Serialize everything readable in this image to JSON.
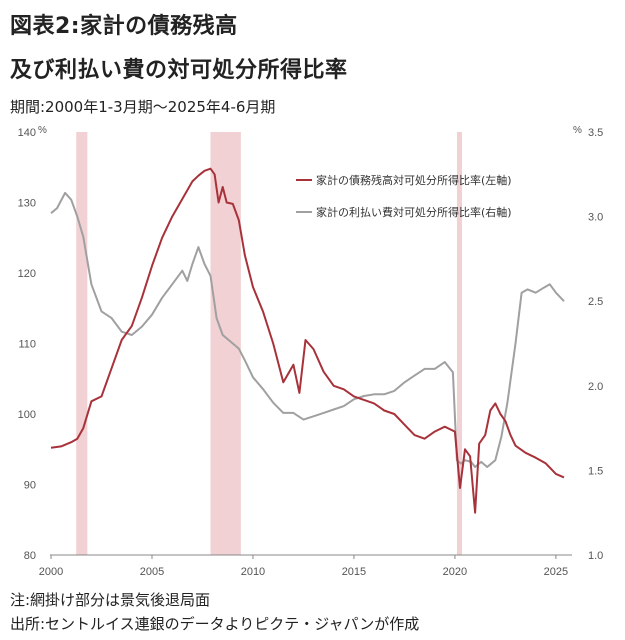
{
  "header": {
    "title_line1": "図表2:家計の債務残高",
    "title_line2": "及び利払い費の対可処分所得比率",
    "period": "期間:2000年1-3月期～2025年4-6月期"
  },
  "footer": {
    "note": "注:網掛け部分は景気後退局面",
    "source": "出所:セントルイス連銀のデータよりピクテ・ジャパンが作成"
  },
  "chart_data": {
    "type": "line",
    "left_axis": {
      "unit": "%",
      "ylim": [
        80,
        140
      ],
      "ticks": [
        "80",
        "90",
        "100",
        "110",
        "120",
        "130",
        "140"
      ]
    },
    "right_axis": {
      "unit": "%",
      "ylim": [
        1.0,
        3.5
      ],
      "ticks": [
        "1.0",
        "1.5",
        "2.0",
        "2.5",
        "3.0",
        "3.5"
      ]
    },
    "x_axis": {
      "xlim": [
        2000,
        2025.5
      ],
      "ticks": [
        "2000",
        "2005",
        "2010",
        "2015",
        "2020",
        "2025"
      ]
    },
    "grid": false,
    "legend_position": "top-right",
    "recessions": [
      [
        2001.25,
        2001.8
      ],
      [
        2007.9,
        2009.4
      ],
      [
        2020.1,
        2020.35
      ]
    ],
    "series": [
      {
        "name": "家計の債務残高対可処分所得比率(左軸)",
        "axis": "left",
        "color": "#a8323a",
        "x": [
          2000.0,
          2000.5,
          2001.0,
          2001.3,
          2001.6,
          2002.0,
          2002.5,
          2003.0,
          2003.5,
          2004.0,
          2004.5,
          2005.0,
          2005.5,
          2006.0,
          2006.5,
          2007.0,
          2007.3,
          2007.6,
          2007.9,
          2008.1,
          2008.3,
          2008.5,
          2008.7,
          2009.0,
          2009.3,
          2009.6,
          2010.0,
          2010.5,
          2011.0,
          2011.5,
          2012.0,
          2012.3,
          2012.6,
          2013.0,
          2013.5,
          2014.0,
          2014.5,
          2015.0,
          2015.5,
          2016.0,
          2016.5,
          2017.0,
          2017.5,
          2018.0,
          2018.5,
          2019.0,
          2019.5,
          2020.0,
          2020.25,
          2020.5,
          2020.75,
          2021.0,
          2021.2,
          2021.5,
          2021.75,
          2022.0,
          2022.25,
          2022.5,
          2022.75,
          2023.0,
          2023.5,
          2024.0,
          2024.5,
          2025.0,
          2025.4
        ],
        "values": [
          95.2,
          95.4,
          96.0,
          96.5,
          98.0,
          101.8,
          102.5,
          106.5,
          110.5,
          112.5,
          116.5,
          121.0,
          125.0,
          128.0,
          130.5,
          133.0,
          133.8,
          134.5,
          134.8,
          134.0,
          130.0,
          132.2,
          130.0,
          129.8,
          127.5,
          122.5,
          118.0,
          114.5,
          110.0,
          104.5,
          107.0,
          103.0,
          110.5,
          109.2,
          106.0,
          104.0,
          103.5,
          102.5,
          102.0,
          101.5,
          100.5,
          100.0,
          98.5,
          97.0,
          96.5,
          97.5,
          98.2,
          97.5,
          89.5,
          95.0,
          94.0,
          86.0,
          95.8,
          97.0,
          100.5,
          101.5,
          100.0,
          99.0,
          97.0,
          95.5,
          94.5,
          93.8,
          93.0,
          91.5,
          91.0
        ]
      },
      {
        "name": "家計の利払い費対可処分所得比率(右軸)",
        "axis": "right",
        "color": "#a0a0a0",
        "x": [
          2000.0,
          2000.3,
          2000.7,
          2001.0,
          2001.3,
          2001.6,
          2002.0,
          2002.5,
          2003.0,
          2003.5,
          2004.0,
          2004.5,
          2005.0,
          2005.5,
          2006.0,
          2006.5,
          2006.75,
          2007.0,
          2007.3,
          2007.6,
          2007.9,
          2008.2,
          2008.5,
          2009.0,
          2009.3,
          2009.6,
          2010.0,
          2010.5,
          2011.0,
          2011.5,
          2012.0,
          2012.5,
          2013.0,
          2013.5,
          2014.0,
          2014.5,
          2015.0,
          2015.5,
          2016.0,
          2016.5,
          2017.0,
          2017.5,
          2018.0,
          2018.5,
          2019.0,
          2019.5,
          2019.9,
          2020.1,
          2020.3,
          2020.5,
          2020.8,
          2021.0,
          2021.3,
          2021.6,
          2022.0,
          2022.3,
          2022.6,
          2023.0,
          2023.3,
          2023.6,
          2024.0,
          2024.4,
          2024.7,
          2025.0,
          2025.4
        ],
        "values": [
          3.02,
          3.05,
          3.14,
          3.1,
          3.0,
          2.88,
          2.6,
          2.44,
          2.4,
          2.32,
          2.3,
          2.35,
          2.42,
          2.52,
          2.6,
          2.68,
          2.62,
          2.72,
          2.82,
          2.72,
          2.65,
          2.4,
          2.3,
          2.25,
          2.22,
          2.15,
          2.05,
          1.98,
          1.9,
          1.84,
          1.84,
          1.8,
          1.82,
          1.84,
          1.86,
          1.88,
          1.92,
          1.94,
          1.95,
          1.95,
          1.97,
          2.02,
          2.06,
          2.1,
          2.1,
          2.14,
          2.08,
          1.56,
          1.54,
          1.56,
          1.55,
          1.52,
          1.55,
          1.52,
          1.56,
          1.7,
          1.9,
          2.25,
          2.55,
          2.57,
          2.55,
          2.58,
          2.6,
          2.55,
          2.5
        ]
      }
    ]
  }
}
